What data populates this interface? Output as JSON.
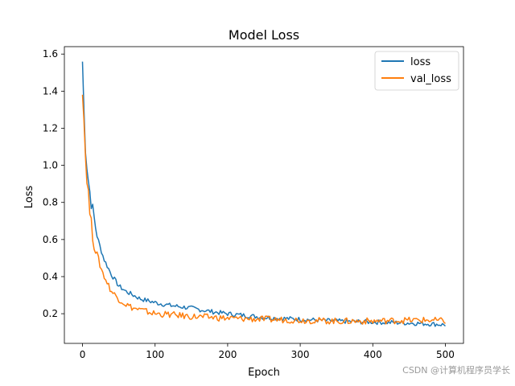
{
  "chart_data": {
    "type": "line",
    "title": "Model Loss",
    "xlabel": "Epoch",
    "ylabel": "Loss",
    "xlim": [
      -25,
      525
    ],
    "ylim": [
      0.04,
      1.64
    ],
    "xticks": [
      0,
      100,
      200,
      300,
      400,
      500
    ],
    "yticks": [
      0.2,
      0.4,
      0.6,
      0.8,
      1.0,
      1.2,
      1.4,
      1.6
    ],
    "xtick_labels": [
      "0",
      "100",
      "200",
      "300",
      "400",
      "500"
    ],
    "ytick_labels": [
      "0.2",
      "0.4",
      "0.6",
      "0.8",
      "1.0",
      "1.2",
      "1.4",
      "1.6"
    ],
    "legend_position": "top-right",
    "series": [
      {
        "name": "loss",
        "color": "#1f77b4",
        "x": [
          0,
          2,
          4,
          6,
          8,
          10,
          12,
          15,
          20,
          25,
          30,
          35,
          40,
          50,
          60,
          70,
          80,
          100,
          120,
          150,
          180,
          200,
          250,
          300,
          350,
          400,
          450,
          480,
          500
        ],
        "values": [
          1.56,
          1.3,
          1.1,
          1.0,
          0.92,
          0.86,
          0.8,
          0.74,
          0.62,
          0.55,
          0.49,
          0.45,
          0.41,
          0.35,
          0.32,
          0.3,
          0.28,
          0.26,
          0.245,
          0.23,
          0.21,
          0.2,
          0.18,
          0.17,
          0.16,
          0.155,
          0.15,
          0.145,
          0.14
        ]
      },
      {
        "name": "val_loss",
        "color": "#ff7f0e",
        "x": [
          0,
          2,
          4,
          6,
          8,
          10,
          12,
          15,
          20,
          25,
          30,
          35,
          40,
          50,
          60,
          70,
          80,
          100,
          120,
          150,
          180,
          200,
          250,
          300,
          350,
          400,
          450,
          480,
          500
        ],
        "values": [
          1.42,
          1.25,
          1.05,
          0.94,
          0.85,
          0.75,
          0.68,
          0.6,
          0.52,
          0.45,
          0.4,
          0.36,
          0.32,
          0.28,
          0.25,
          0.23,
          0.22,
          0.2,
          0.195,
          0.185,
          0.18,
          0.175,
          0.17,
          0.165,
          0.16,
          0.16,
          0.165,
          0.165,
          0.16
        ]
      }
    ]
  },
  "watermark": "CSDN @计算机程序员学长"
}
